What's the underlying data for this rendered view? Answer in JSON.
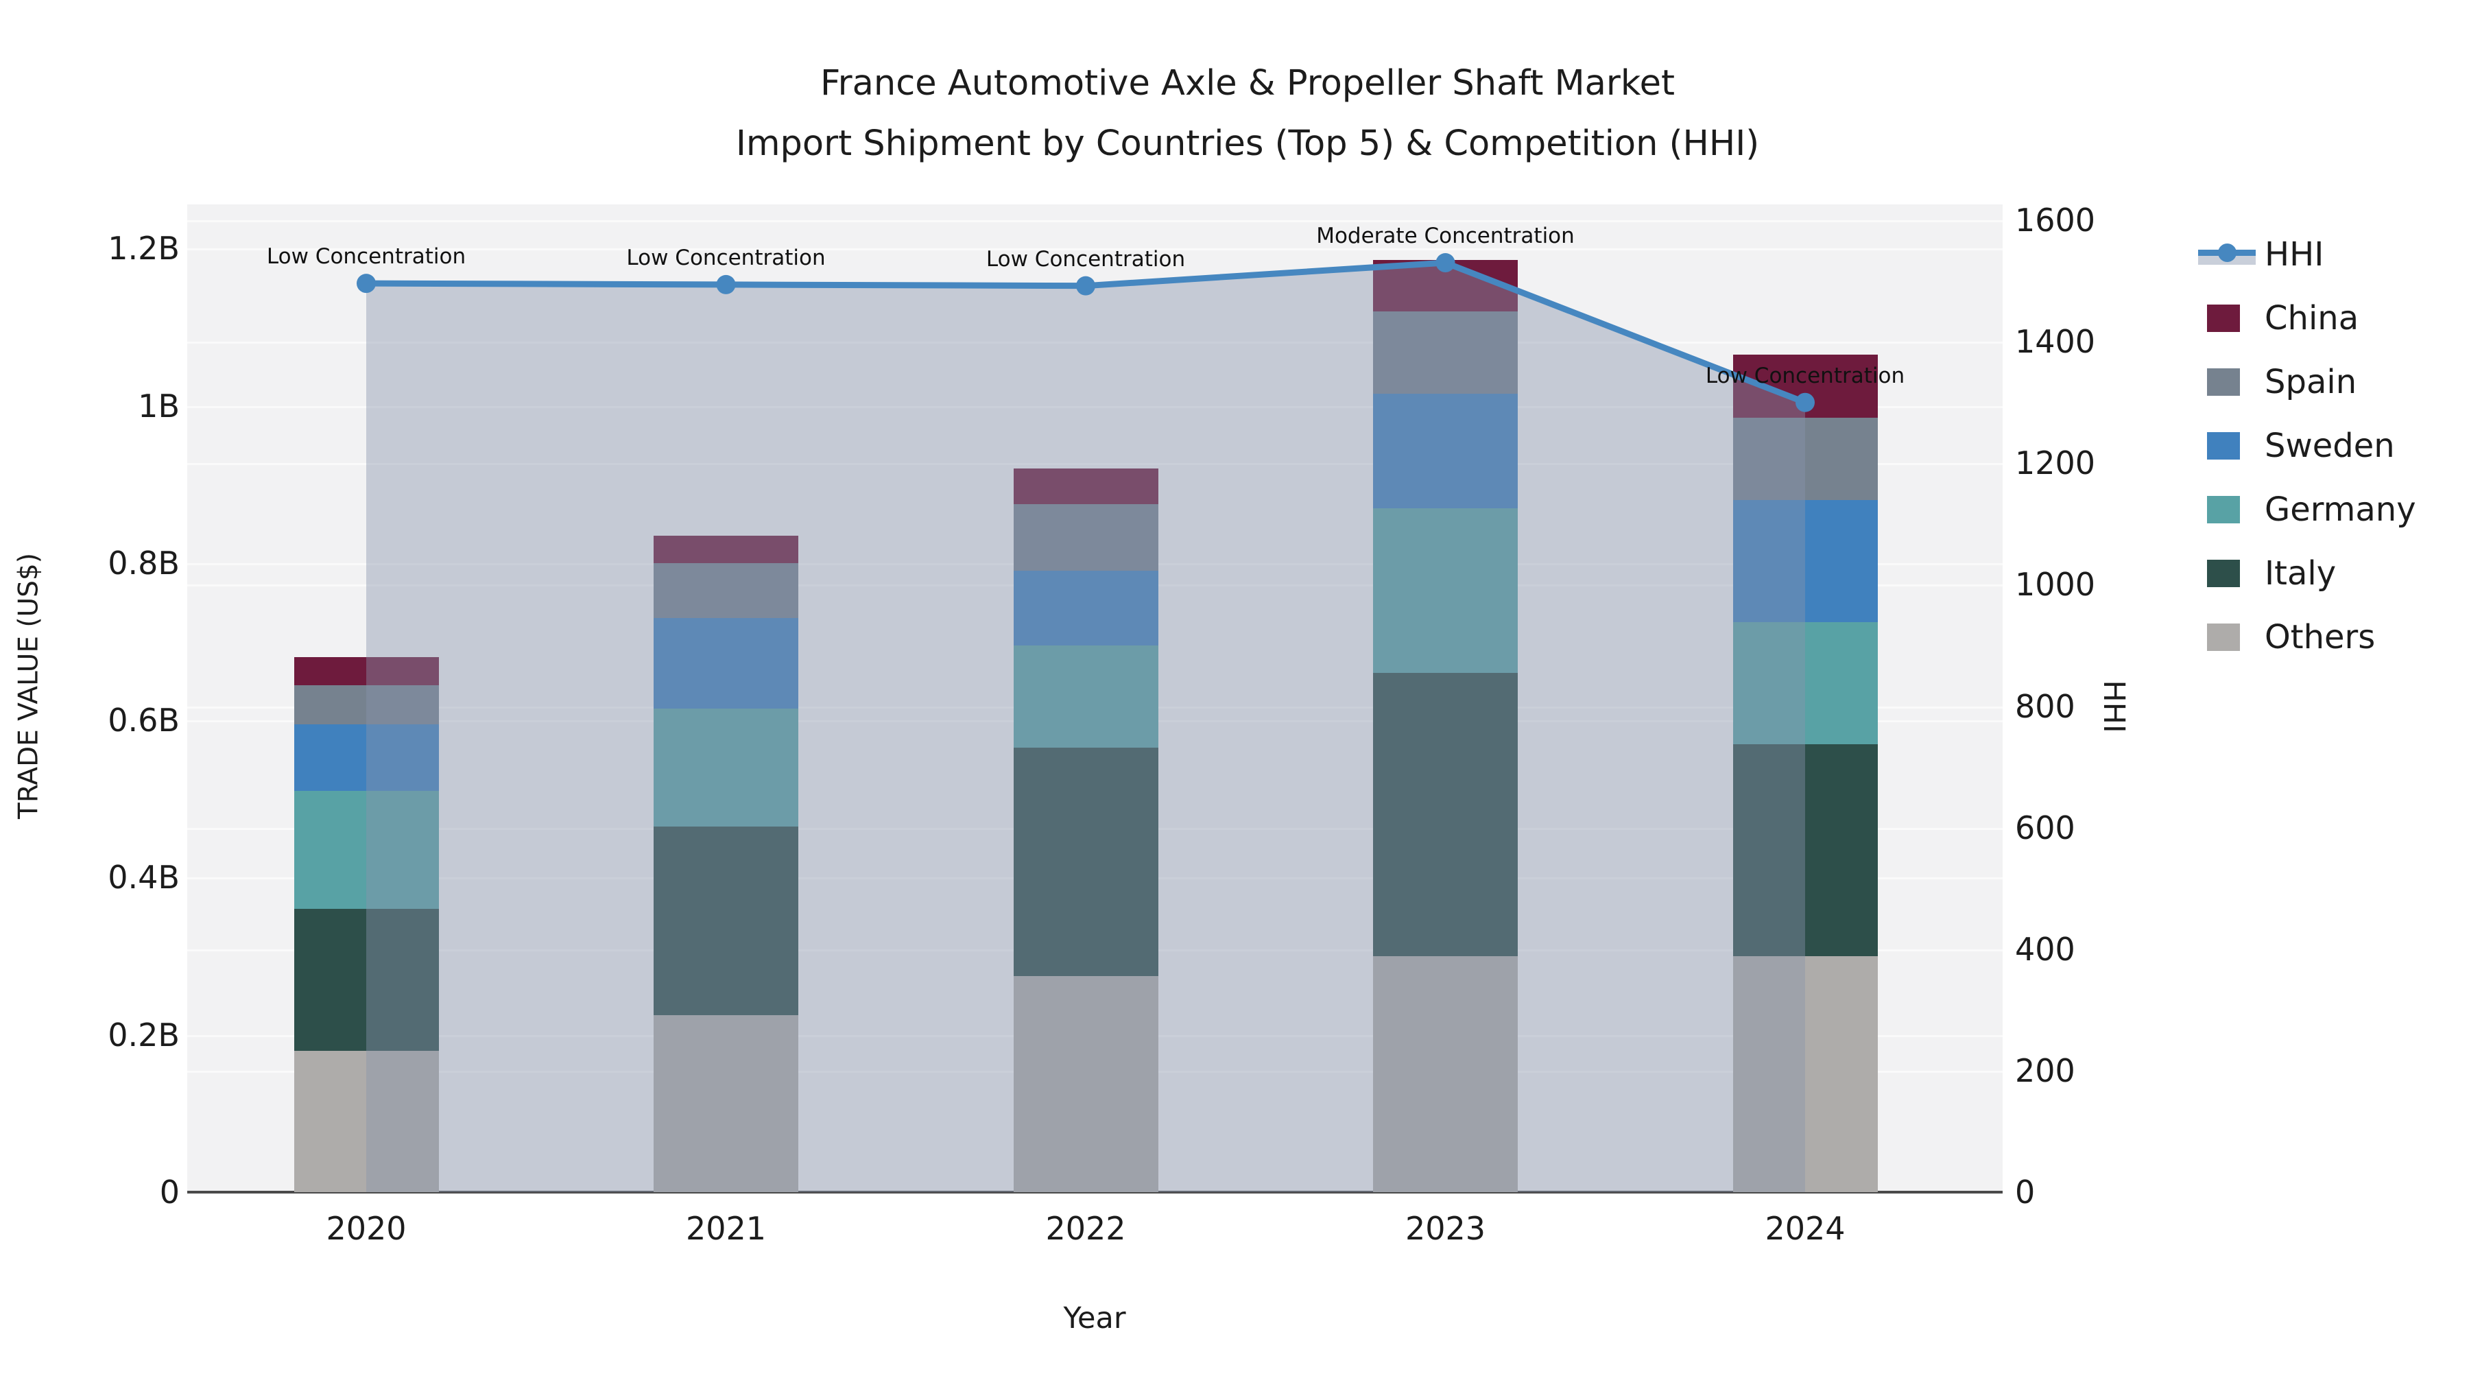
{
  "title": {
    "line1": "France Automotive Axle & Propeller Shaft Market",
    "line2": "Import Shipment by Countries (Top 5) & Competition (HHI)"
  },
  "axes": {
    "x_label": "Year",
    "y_left_label": "TRADE VALUE (US$)",
    "y_right_label": "HHI",
    "y_left_ticks": [
      "0",
      "0.2B",
      "0.4B",
      "0.6B",
      "0.8B",
      "1B",
      "1.2B"
    ],
    "y_right_ticks": [
      "0",
      "200",
      "400",
      "600",
      "800",
      "1000",
      "1200",
      "1400",
      "1600"
    ]
  },
  "colors": {
    "background": "#ffffff",
    "plot_background": "#f2f2f3",
    "gridline": "#fafafa",
    "axis_line": "#4a4a4a",
    "hhi_line": "#4687c0",
    "hhi_area_fill": "rgba(137,147,172,0.42)",
    "text": "#1c1c1c"
  },
  "chart_data": {
    "type": "stacked-bar+line",
    "categories": [
      "2020",
      "2021",
      "2022",
      "2023",
      "2024"
    ],
    "unit_left": "billion US$ (trade value, left axis)",
    "ylim_left": [
      0,
      1.26
    ],
    "ylim_right": [
      0,
      1626
    ],
    "grid": true,
    "legend_position": "right",
    "series": [
      {
        "name": "China",
        "color": "#6e1b3d",
        "values": [
          0.035,
          0.035,
          0.045,
          0.065,
          0.08
        ]
      },
      {
        "name": "Spain",
        "color": "#76828f",
        "values": [
          0.05,
          0.07,
          0.085,
          0.105,
          0.105
        ]
      },
      {
        "name": "Sweden",
        "color": "#4081be",
        "values": [
          0.085,
          0.115,
          0.095,
          0.145,
          0.155
        ]
      },
      {
        "name": "Germany",
        "color": "#58a2a5",
        "values": [
          0.15,
          0.15,
          0.13,
          0.21,
          0.155
        ]
      },
      {
        "name": "Italy",
        "color": "#2d4f4a",
        "values": [
          0.18,
          0.24,
          0.29,
          0.36,
          0.27
        ]
      },
      {
        "name": "Others",
        "color": "#aeacaa",
        "values": [
          0.18,
          0.225,
          0.275,
          0.3,
          0.3
        ]
      }
    ],
    "stack_order_bottom_to_top": [
      "Others",
      "Italy",
      "Germany",
      "Sweden",
      "Spain",
      "China"
    ],
    "totals": [
      0.68,
      0.835,
      0.92,
      1.185,
      1.065
    ],
    "line": {
      "name": "HHI",
      "axis": "right",
      "color": "#4687c0",
      "marker": "circle",
      "values": [
        1496,
        1494,
        1492,
        1530,
        1300
      ]
    },
    "annotations": [
      "Low Concentration",
      "Low Concentration",
      "Low Concentration",
      "Moderate Concentration",
      "Low Concentration"
    ]
  }
}
